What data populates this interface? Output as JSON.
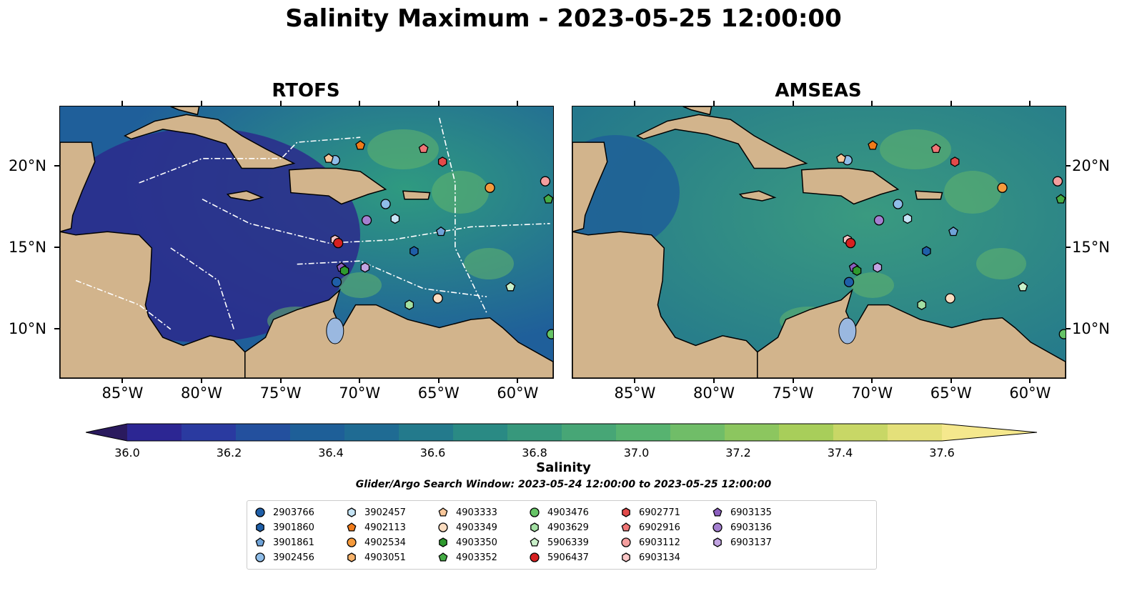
{
  "title": "Salinity Maximum - 2023-05-25 12:00:00",
  "panels": [
    {
      "title": "RTOFS"
    },
    {
      "title": "AMSEAS"
    }
  ],
  "lon_ticks": [
    "85°W",
    "80°W",
    "75°W",
    "70°W",
    "65°W",
    "60°W"
  ],
  "lat_ticks": [
    "20°N",
    "15°N",
    "10°N"
  ],
  "colorbar": {
    "label": "Salinity",
    "ticks": [
      "36.0",
      "36.2",
      "36.4",
      "36.6",
      "36.8",
      "37.0",
      "37.2",
      "37.4",
      "37.6"
    ],
    "colors": [
      "#2a1a5e",
      "#2c2693",
      "#2a3aa0",
      "#23509e",
      "#1e5f98",
      "#1f6b93",
      "#237a8c",
      "#2a8a84",
      "#37987c",
      "#47a676",
      "#57b370",
      "#70bd68",
      "#8cc65f",
      "#a8ce5a",
      "#c8d766",
      "#e4e07a",
      "#f5e88d"
    ]
  },
  "search_window": "Glider/Argo Search Window: 2023-05-24 12:00:00 to 2023-05-25 12:00:00",
  "legend": [
    {
      "id": "2903766",
      "shape": "circle",
      "color": "#1f5fa8"
    },
    {
      "id": "3901860",
      "shape": "hexagon",
      "color": "#1f5fa8"
    },
    {
      "id": "3901861",
      "shape": "pentagon",
      "color": "#6fa3d8"
    },
    {
      "id": "3902456",
      "shape": "circle",
      "color": "#8fbde8"
    },
    {
      "id": "3902457",
      "shape": "hexagon",
      "color": "#c5e4f5"
    },
    {
      "id": "4902113",
      "shape": "pentagon",
      "color": "#f07b1a"
    },
    {
      "id": "4902534",
      "shape": "circle",
      "color": "#f59a3c"
    },
    {
      "id": "4903051",
      "shape": "hexagon",
      "color": "#f7b36b"
    },
    {
      "id": "4903333",
      "shape": "pentagon",
      "color": "#f8c79a"
    },
    {
      "id": "4903349",
      "shape": "circle",
      "color": "#fbdcbf"
    },
    {
      "id": "4903350",
      "shape": "hexagon",
      "color": "#2e9a2e"
    },
    {
      "id": "4903352",
      "shape": "pentagon",
      "color": "#45ac45"
    },
    {
      "id": "4903476",
      "shape": "circle",
      "color": "#66c466"
    },
    {
      "id": "4903629",
      "shape": "hexagon",
      "color": "#a3e0a3"
    },
    {
      "id": "5906339",
      "shape": "pentagon",
      "color": "#c9f0c9"
    },
    {
      "id": "5906437",
      "shape": "circle",
      "color": "#d62020"
    },
    {
      "id": "6902771",
      "shape": "hexagon",
      "color": "#e24a4a"
    },
    {
      "id": "6902916",
      "shape": "pentagon",
      "color": "#ef7676"
    },
    {
      "id": "6903112",
      "shape": "circle",
      "color": "#f49e9e"
    },
    {
      "id": "6903134",
      "shape": "hexagon",
      "color": "#f9c6c6"
    },
    {
      "id": "6903135",
      "shape": "pentagon",
      "color": "#8c5fbf"
    },
    {
      "id": "6903136",
      "shape": "circle",
      "color": "#a47fd0"
    },
    {
      "id": "6903137",
      "shape": "hexagon",
      "color": "#c2a4e2"
    }
  ]
}
